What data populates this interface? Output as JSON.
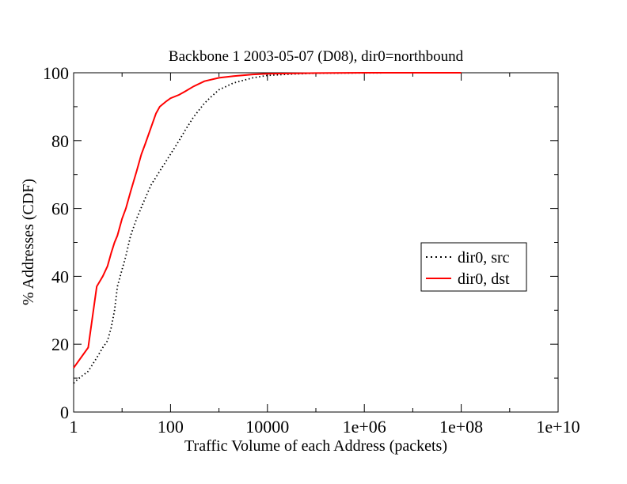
{
  "chart_data": {
    "type": "line",
    "title": "Backbone 1 2003-05-07 (D08), dir0=northbound",
    "xlabel": "Traffic Volume of each Address (packets)",
    "ylabel": "% Addresses (CDF)",
    "x_scale": "log",
    "xlim": [
      1,
      10000000000
    ],
    "ylim": [
      0,
      100
    ],
    "x_ticks": [
      1,
      100,
      10000,
      1000000,
      100000000,
      10000000000
    ],
    "x_tick_labels": [
      "1",
      "100",
      "10000",
      "1e+06",
      "1e+08",
      "1e+10"
    ],
    "y_ticks": [
      0,
      20,
      40,
      60,
      80,
      100
    ],
    "y_tick_labels": [
      "0",
      "20",
      "40",
      "60",
      "80",
      "100"
    ],
    "grid": false,
    "legend_position": "right",
    "series": [
      {
        "name": "dir0, src",
        "color": "#000000",
        "style": "dotted",
        "points": [
          [
            1,
            8.5
          ],
          [
            1.3,
            10
          ],
          [
            2,
            12
          ],
          [
            3,
            16
          ],
          [
            4,
            19
          ],
          [
            5,
            21
          ],
          [
            6,
            25
          ],
          [
            7,
            30
          ],
          [
            8,
            37
          ],
          [
            10,
            42
          ],
          [
            12,
            46
          ],
          [
            15,
            52
          ],
          [
            20,
            57
          ],
          [
            30,
            63
          ],
          [
            40,
            67
          ],
          [
            60,
            71
          ],
          [
            100,
            76
          ],
          [
            150,
            80
          ],
          [
            200,
            83
          ],
          [
            300,
            87
          ],
          [
            500,
            91
          ],
          [
            700,
            93
          ],
          [
            1000,
            95
          ],
          [
            2000,
            97
          ],
          [
            5000,
            98.5
          ],
          [
            10000,
            99.2
          ],
          [
            30000,
            99.6
          ],
          [
            100000,
            99.85
          ],
          [
            1000000,
            99.95
          ],
          [
            100000000,
            100
          ]
        ]
      },
      {
        "name": "dir0, dst",
        "color": "#ff0000",
        "style": "solid",
        "points": [
          [
            1,
            13
          ],
          [
            2,
            19
          ],
          [
            3,
            37
          ],
          [
            4,
            40
          ],
          [
            5,
            43
          ],
          [
            6,
            47
          ],
          [
            7,
            50
          ],
          [
            8,
            52
          ],
          [
            10,
            57
          ],
          [
            12,
            60
          ],
          [
            15,
            65
          ],
          [
            20,
            71
          ],
          [
            25,
            76
          ],
          [
            30,
            79
          ],
          [
            40,
            84
          ],
          [
            50,
            88
          ],
          [
            60,
            90
          ],
          [
            80,
            91.5
          ],
          [
            100,
            92.5
          ],
          [
            150,
            93.5
          ],
          [
            200,
            94.5
          ],
          [
            300,
            96
          ],
          [
            500,
            97.5
          ],
          [
            1000,
            98.5
          ],
          [
            2000,
            99
          ],
          [
            5000,
            99.5
          ],
          [
            10000,
            99.7
          ],
          [
            100000,
            99.9
          ],
          [
            1000000,
            100
          ],
          [
            100000000,
            100
          ]
        ]
      }
    ]
  }
}
